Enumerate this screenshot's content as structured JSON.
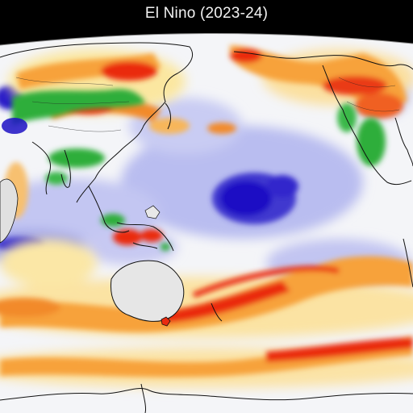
{
  "map": {
    "title": "El Nino (2023-24)",
    "projection": "robinson-pacific-centered",
    "colors": {
      "background": "#000000",
      "neutral": "#f4f5f8",
      "cool_anomaly_light": "#b9bdf0",
      "cool_anomaly_mid": "#6a6ad8",
      "cool_anomaly_strong": "#1c10c4",
      "warm_anomaly_light": "#fbe7a0",
      "warm_anomaly_mid": "#f7a23a",
      "warm_anomaly_strong": "#ea2a10",
      "wet_anomaly": "#2fae3a",
      "land_neutral": "#e6e6e6",
      "coastline": "#111111"
    }
  }
}
